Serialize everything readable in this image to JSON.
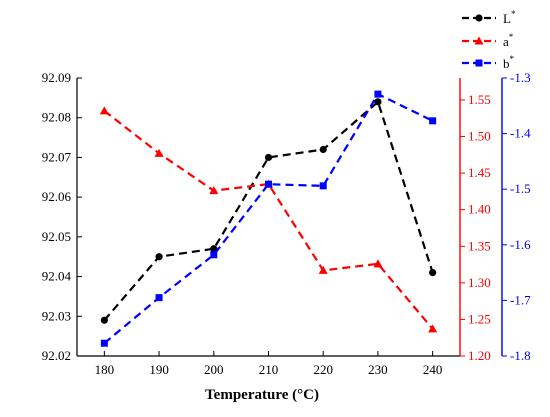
{
  "chart_data": {
    "type": "line",
    "xlabel": "Temperature (°C)",
    "x": [
      180,
      190,
      200,
      210,
      220,
      230,
      240
    ],
    "xlim": [
      175,
      245
    ],
    "y_left": {
      "ylim": [
        92.02,
        92.09
      ],
      "ticks": [
        "92.02",
        "92.03",
        "92.04",
        "92.05",
        "92.06",
        "92.07",
        "92.08",
        "92.09"
      ],
      "color": "#000000"
    },
    "y_right1": {
      "ylim": [
        1.2,
        1.58
      ],
      "ticks": [
        "1.20",
        "1.25",
        "1.30",
        "1.35",
        "1.40",
        "1.45",
        "1.50",
        "1.55"
      ],
      "color": "#ff0000"
    },
    "y_right2": {
      "ylim": [
        -1.8,
        -1.3
      ],
      "ticks": [
        "-1.3",
        "-1.4",
        "-1.5",
        "-1.6",
        "-1.7",
        "-1.8"
      ],
      "color": "#0000ff"
    },
    "series": [
      {
        "name": "L",
        "sup": "*",
        "axis": "left",
        "color": "#000000",
        "marker": "circle",
        "values": [
          92.029,
          92.045,
          92.047,
          92.07,
          92.072,
          92.084,
          92.041
        ]
      },
      {
        "name": "a",
        "sup": "*",
        "axis": "right1",
        "color": "#ff0000",
        "marker": "triangle",
        "values": [
          1.535,
          1.477,
          1.426,
          1.435,
          1.317,
          1.326,
          1.237
        ]
      },
      {
        "name": "b",
        "sup": "*",
        "axis": "right2",
        "color": "#0000ff",
        "marker": "square",
        "values": [
          -1.777,
          -1.695,
          -1.618,
          -1.491,
          -1.494,
          -1.329,
          -1.377
        ]
      }
    ],
    "legend_position": "top-right"
  }
}
